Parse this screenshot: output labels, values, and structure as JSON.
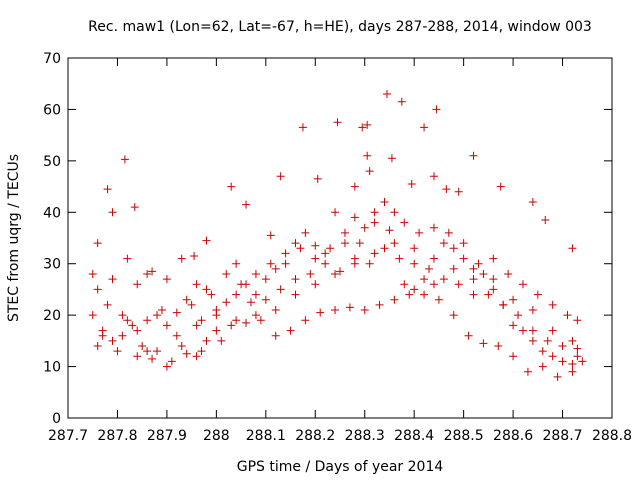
{
  "chart_data": {
    "type": "scatter",
    "title": "Rec. maw1 (Lon=62, Lat=-67, h=HE), days 287-288, 2014, window 003",
    "xlabel": "GPS time / Days of year 2014",
    "ylabel": "STEC from uqrg / TECUs",
    "xlim": [
      287.7,
      288.8
    ],
    "ylim": [
      0,
      70
    ],
    "xticks": [
      287.7,
      287.8,
      287.9,
      288.0,
      288.1,
      288.2,
      288.3,
      288.4,
      288.5,
      288.6,
      288.7,
      288.8
    ],
    "xtick_labels": [
      "287.7",
      "287.8",
      "287.9",
      "288",
      "288.1",
      "288.2",
      "288.3",
      "288.4",
      "288.5",
      "288.6",
      "288.7",
      "288.8"
    ],
    "yticks": [
      0,
      10,
      20,
      30,
      40,
      50,
      60,
      70
    ],
    "ytick_labels": [
      "0",
      "10",
      "20",
      "30",
      "40",
      "50",
      "60",
      "70"
    ],
    "grid": false,
    "legend": "none",
    "marker": "+",
    "marker_color": "#cc0000",
    "series": [
      {
        "name": "STEC",
        "points": [
          [
            287.76,
            34
          ],
          [
            287.78,
            44.5
          ],
          [
            287.79,
            40
          ],
          [
            287.815,
            50.3
          ],
          [
            287.835,
            41
          ],
          [
            287.86,
            28
          ],
          [
            287.955,
            31.5
          ],
          [
            287.98,
            34.5
          ],
          [
            288.03,
            45
          ],
          [
            288.06,
            41.5
          ],
          [
            288.11,
            35.5
          ],
          [
            288.13,
            47
          ],
          [
            288.175,
            56.5
          ],
          [
            288.205,
            46.5
          ],
          [
            288.245,
            57.5
          ],
          [
            288.28,
            45
          ],
          [
            288.295,
            56.5
          ],
          [
            288.305,
            57
          ],
          [
            288.305,
            51
          ],
          [
            288.31,
            48
          ],
          [
            288.355,
            50.5
          ],
          [
            288.345,
            63
          ],
          [
            288.375,
            61.5
          ],
          [
            288.395,
            45.5
          ],
          [
            288.42,
            56.5
          ],
          [
            288.445,
            60
          ],
          [
            288.44,
            47
          ],
          [
            288.465,
            44.5
          ],
          [
            288.49,
            44
          ],
          [
            288.52,
            51
          ],
          [
            288.575,
            45
          ],
          [
            288.64,
            42
          ],
          [
            288.665,
            38.5
          ],
          [
            288.72,
            33
          ],
          [
            287.77,
            17
          ],
          [
            287.81,
            16
          ],
          [
            287.85,
            14
          ],
          [
            287.87,
            11.5
          ],
          [
            287.9,
            10
          ],
          [
            287.93,
            14
          ],
          [
            287.96,
            12
          ],
          [
            287.98,
            15
          ],
          [
            288.0,
            17
          ],
          [
            288.03,
            18
          ],
          [
            288.06,
            18.5
          ],
          [
            288.09,
            19
          ],
          [
            288.12,
            16
          ],
          [
            288.15,
            17
          ],
          [
            288.18,
            19
          ],
          [
            288.21,
            20.5
          ],
          [
            288.24,
            21
          ],
          [
            288.27,
            21.5
          ],
          [
            288.3,
            21
          ],
          [
            288.33,
            22
          ],
          [
            288.36,
            23
          ],
          [
            288.39,
            24
          ],
          [
            288.42,
            24
          ],
          [
            288.45,
            23
          ],
          [
            288.48,
            20
          ],
          [
            288.51,
            16
          ],
          [
            288.54,
            14.5
          ],
          [
            288.57,
            14
          ],
          [
            288.6,
            12
          ],
          [
            288.63,
            9
          ],
          [
            288.66,
            10
          ],
          [
            288.69,
            8
          ],
          [
            288.72,
            9
          ],
          [
            288.73,
            12
          ],
          [
            287.76,
            25
          ],
          [
            287.79,
            27
          ],
          [
            287.82,
            31
          ],
          [
            287.84,
            26
          ],
          [
            287.87,
            28.5
          ],
          [
            287.9,
            27
          ],
          [
            287.93,
            31
          ],
          [
            287.96,
            26
          ],
          [
            287.99,
            24
          ],
          [
            288.02,
            22.5
          ],
          [
            288.05,
            26
          ],
          [
            288.08,
            28
          ],
          [
            288.11,
            30
          ],
          [
            288.14,
            32
          ],
          [
            288.17,
            33
          ],
          [
            288.2,
            33.5
          ],
          [
            288.23,
            33
          ],
          [
            288.26,
            36
          ],
          [
            288.29,
            34
          ],
          [
            288.32,
            38
          ],
          [
            288.35,
            36.5
          ],
          [
            288.38,
            38
          ],
          [
            288.41,
            36
          ],
          [
            288.44,
            37
          ],
          [
            288.47,
            36
          ],
          [
            288.5,
            34
          ],
          [
            288.53,
            30
          ],
          [
            288.56,
            31
          ],
          [
            288.59,
            28
          ],
          [
            288.62,
            26
          ],
          [
            288.65,
            24
          ],
          [
            288.68,
            22
          ],
          [
            288.71,
            20
          ],
          [
            288.73,
            19
          ],
          [
            287.75,
            20
          ],
          [
            287.78,
            22
          ],
          [
            287.81,
            20
          ],
          [
            287.83,
            18
          ],
          [
            287.86,
            19
          ],
          [
            287.89,
            21
          ],
          [
            287.92,
            20.5
          ],
          [
            287.95,
            22
          ],
          [
            287.97,
            19
          ],
          [
            288.0,
            21
          ],
          [
            288.04,
            24
          ],
          [
            288.07,
            22.5
          ],
          [
            288.1,
            23
          ],
          [
            288.13,
            25
          ],
          [
            288.16,
            27
          ],
          [
            288.19,
            28
          ],
          [
            288.22,
            30
          ],
          [
            288.25,
            28.5
          ],
          [
            288.28,
            31
          ],
          [
            288.31,
            30
          ],
          [
            288.34,
            33
          ],
          [
            288.37,
            31
          ],
          [
            288.4,
            30
          ],
          [
            288.43,
            29
          ],
          [
            288.46,
            27
          ],
          [
            288.49,
            26
          ],
          [
            288.52,
            24
          ],
          [
            288.55,
            24
          ],
          [
            288.58,
            22
          ],
          [
            288.61,
            20
          ],
          [
            288.64,
            17
          ],
          [
            288.67,
            15
          ],
          [
            288.7,
            14
          ],
          [
            288.73,
            13.5
          ],
          [
            287.76,
            14
          ],
          [
            287.8,
            13
          ],
          [
            287.84,
            12
          ],
          [
            287.88,
            13
          ],
          [
            287.91,
            11
          ],
          [
            287.94,
            12.5
          ],
          [
            287.97,
            13
          ],
          [
            288.01,
            15
          ],
          [
            288.04,
            19
          ],
          [
            288.08,
            20
          ],
          [
            288.12,
            21
          ],
          [
            288.16,
            24
          ],
          [
            288.2,
            26
          ],
          [
            288.24,
            28
          ],
          [
            288.28,
            30
          ],
          [
            288.32,
            32
          ],
          [
            288.36,
            34
          ],
          [
            288.4,
            33
          ],
          [
            288.44,
            31
          ],
          [
            288.48,
            29
          ],
          [
            288.52,
            27
          ],
          [
            288.56,
            25
          ],
          [
            288.6,
            23
          ],
          [
            288.64,
            21
          ],
          [
            288.68,
            17
          ],
          [
            288.72,
            15
          ],
          [
            287.75,
            28
          ],
          [
            287.77,
            16
          ],
          [
            287.79,
            15
          ],
          [
            287.82,
            19
          ],
          [
            287.84,
            17
          ],
          [
            287.86,
            13
          ],
          [
            287.88,
            20
          ],
          [
            287.9,
            18
          ],
          [
            287.92,
            16
          ],
          [
            287.94,
            23
          ],
          [
            287.96,
            18
          ],
          [
            287.98,
            25
          ],
          [
            288.0,
            20
          ],
          [
            288.02,
            28
          ],
          [
            288.04,
            30
          ],
          [
            288.06,
            26
          ],
          [
            288.08,
            24
          ],
          [
            288.1,
            27
          ],
          [
            288.12,
            29
          ],
          [
            288.14,
            30
          ],
          [
            288.16,
            34
          ],
          [
            288.18,
            36
          ],
          [
            288.2,
            31
          ],
          [
            288.22,
            32
          ],
          [
            288.24,
            40
          ],
          [
            288.26,
            34
          ],
          [
            288.28,
            39
          ],
          [
            288.3,
            37
          ],
          [
            288.32,
            40
          ],
          [
            288.34,
            42
          ],
          [
            288.36,
            40
          ],
          [
            288.38,
            26
          ],
          [
            288.4,
            25
          ],
          [
            288.42,
            27
          ],
          [
            288.44,
            26
          ],
          [
            288.46,
            34
          ],
          [
            288.48,
            33
          ],
          [
            288.5,
            31
          ],
          [
            288.52,
            29
          ],
          [
            288.54,
            28
          ],
          [
            288.56,
            27
          ],
          [
            288.58,
            22
          ],
          [
            288.6,
            18
          ],
          [
            288.62,
            17
          ],
          [
            288.64,
            15
          ],
          [
            288.66,
            13
          ],
          [
            288.68,
            12
          ],
          [
            288.7,
            11
          ],
          [
            288.72,
            10.5
          ],
          [
            288.74,
            11
          ]
        ]
      }
    ]
  }
}
